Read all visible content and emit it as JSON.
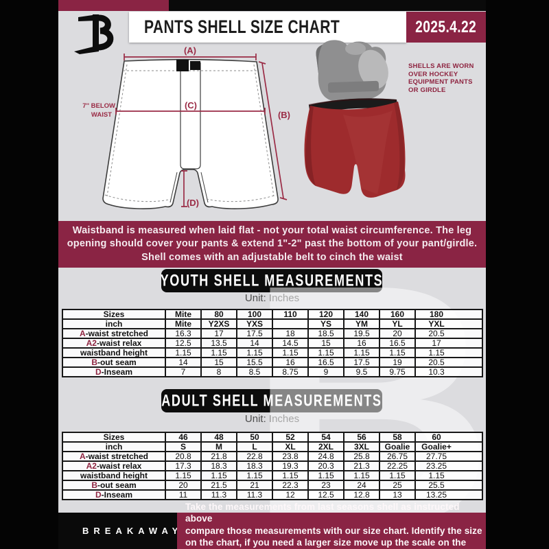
{
  "header": {
    "title": "PANTS SHELL SIZE CHART",
    "date": "2025.4.22"
  },
  "colors": {
    "maroon": "#8a2444",
    "page_gray": "#dcdcdf",
    "black": "#0a0a0a",
    "shell_red": "#9e2b2d"
  },
  "diagram": {
    "label_a": "(A)",
    "label_b": "(B)",
    "label_c": "(C)",
    "label_d": "(D)",
    "below_waist_line1": "7'' BELOW",
    "below_waist_line2": "WAIST",
    "note_lines": [
      "SHELLS ARE WORN",
      "OVER HOCKEY",
      "EQUIPMENT PANTS",
      "OR GIRDLE"
    ]
  },
  "info_banner": {
    "lines": [
      "Waistband is measured when laid flat - not your total waist circumference. The leg",
      "opening should cover your pants & extend 1\"-2\" past the bottom of your pant/girdle.",
      "Shell comes with an adjustable belt to cinch the waist"
    ]
  },
  "youth": {
    "heading": "YOUTH SHELL MEASUREMENTS",
    "unit": "Unit: Inches",
    "table": {
      "rows": [
        {
          "label": "Sizes",
          "bold": true,
          "values": [
            "Mite",
            "80",
            "100",
            "110",
            "120",
            "140",
            "160",
            "180"
          ]
        },
        {
          "label": "inch",
          "bold": true,
          "values": [
            "Mite",
            "Y2XS",
            "YXS",
            "",
            "YS",
            "YM",
            "YL",
            "YXL"
          ]
        },
        {
          "prefix": "A",
          "label": "-waist stretched",
          "values": [
            "16.3",
            "17",
            "17.5",
            "18",
            "18.5",
            "19.5",
            "20",
            "20.5"
          ]
        },
        {
          "prefix": "A2",
          "label": "-waist relax",
          "values": [
            "12.5",
            "13.5",
            "14",
            "14.5",
            "15",
            "16",
            "16.5",
            "17"
          ]
        },
        {
          "label": "waistband height",
          "values": [
            "1.15",
            "1.15",
            "1.15",
            "1.15",
            "1.15",
            "1.15",
            "1.15",
            "1.15"
          ]
        },
        {
          "prefix": "B",
          "label": "-out seam",
          "values": [
            "14",
            "15",
            "15.5",
            "16",
            "16.5",
            "17.5",
            "19",
            "20.5"
          ]
        },
        {
          "prefix": "D",
          "label": "-Inseam",
          "values": [
            "7",
            "8",
            "8.5",
            "8.75",
            "9",
            "9.5",
            "9.75",
            "10.3"
          ]
        }
      ]
    }
  },
  "adult": {
    "heading": "ADULT SHELL MEASUREMENTS",
    "unit": "Unit: Inches",
    "table": {
      "rows": [
        {
          "label": "Sizes",
          "bold": true,
          "values": [
            "46",
            "48",
            "50",
            "52",
            "54",
            "56",
            "58",
            "60"
          ]
        },
        {
          "label": "inch",
          "bold": true,
          "values": [
            "S",
            "M",
            "L",
            "XL",
            "2XL",
            "3XL",
            "Goalie",
            "Goalie+"
          ]
        },
        {
          "prefix": "A",
          "label": "-waist stretched",
          "values": [
            "20.8",
            "21.8",
            "22.8",
            "23.8",
            "24.8",
            "25.8",
            "26.75",
            "27.75"
          ]
        },
        {
          "prefix": "A2",
          "label": "-waist relax",
          "values": [
            "17.3",
            "18.3",
            "18.3",
            "19.3",
            "20.3",
            "21.3",
            "22.25",
            "23.25"
          ]
        },
        {
          "label": "waistband height",
          "values": [
            "1.15",
            "1.15",
            "1.15",
            "1.15",
            "1.15",
            "1.15",
            "1.15",
            "1.15"
          ]
        },
        {
          "prefix": "B",
          "label": "-out seam",
          "values": [
            "20",
            "21.5",
            "21",
            "22.3",
            "23",
            "24",
            "25",
            "25.5"
          ]
        },
        {
          "prefix": "D",
          "label": "-Inseam",
          "values": [
            "11",
            "11.3",
            "11.3",
            "12",
            "12.5",
            "12.8",
            "13",
            "13.25"
          ]
        }
      ]
    }
  },
  "footer": {
    "brand": "BREAKAWAY",
    "lines": [
      "Take the measurements from last seasons shell as instructed above",
      "compare those measurements  with our size chart. Identify the size",
      "on the chart, if you need a larger size move up the scale on the chart"
    ]
  },
  "watermark": "B"
}
